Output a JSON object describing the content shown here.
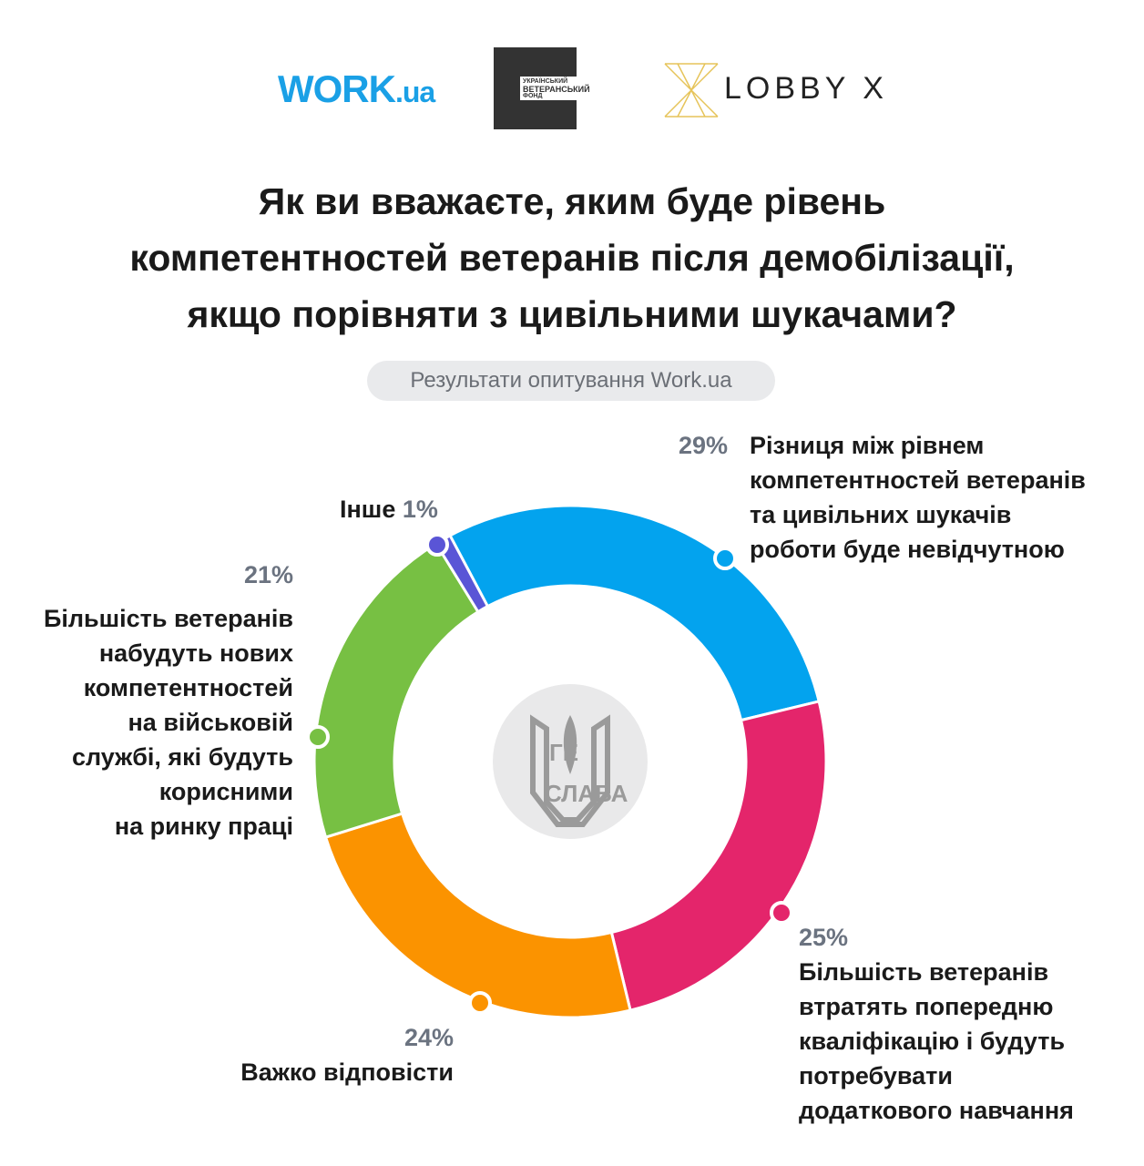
{
  "logos": {
    "work_main": "WORK",
    "work_suffix": ".ua",
    "veteran_fund_line1": "УКРАЇНСЬКИЙ",
    "veteran_fund_line2": "ВЕТЕРАНСЬКИЙ",
    "veteran_fund_line3": "ФОНД",
    "lobby": "LOBBY X",
    "center_emblem": "ГЕРОЯМ СЛАВА!"
  },
  "subtitle": "Результати опитування Work.ua",
  "chart_data": {
    "type": "pie",
    "donut": true,
    "title": "Як ви вважаєте, яким буде рівень компетентностей ветеранів після демобілізації, якщо порівняти з цивільними шукачами?",
    "title_lines": [
      "Як ви вважаєте, яким буде рівень",
      "компетентностей ветеранів після демобілізації,",
      "якщо порівняти з цивільними шукачами?"
    ],
    "slices": [
      {
        "label": "Різниця між рівнем компетентностей ветеранів та цивільних шукачів роботи буде невідчутною",
        "label_lines": [
          "Різниця між рівнем",
          "компетентностей ветеранів",
          "та цивільних шукачів",
          "роботи буде невідчутною"
        ],
        "value": 29,
        "value_label": "29%",
        "color": "#03a3ee"
      },
      {
        "label": "Більшість ветеранів втратять попередню кваліфікацію і будуть потребувати додаткового навчання",
        "label_lines": [
          "Більшість ветеранів",
          "втратять попередню",
          "кваліфікацію і будуть",
          "потребувати",
          "додаткового навчання"
        ],
        "value": 25,
        "value_label": "25%",
        "color": "#e4256b"
      },
      {
        "label": "Важко відповісти",
        "label_lines": [
          "Важко відповісти"
        ],
        "value": 24,
        "value_label": "24%",
        "color": "#fb9300"
      },
      {
        "label": "Більшість ветеранів набудуть нових компетентностей на військовій службі, які будуть корисними на ринку праці",
        "label_lines": [
          "Більшість ветеранів",
          "набудуть нових",
          "компетентностей",
          "на військовій",
          "службі, які будуть",
          "корисними",
          "на ринку праці"
        ],
        "value": 21,
        "value_label": "21%",
        "color": "#77c043"
      },
      {
        "label": "Інше",
        "label_lines": [
          "Інше"
        ],
        "value": 1,
        "value_label": "1%",
        "color": "#5a55d6"
      }
    ]
  }
}
